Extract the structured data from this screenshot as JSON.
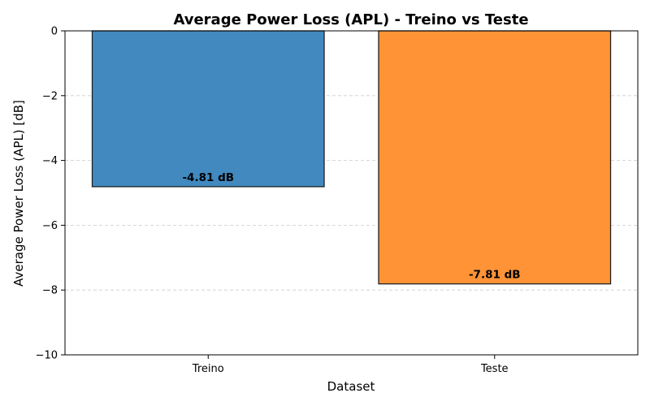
{
  "chart_data": {
    "type": "bar",
    "title": "Average Power Loss (APL) - Treino vs Teste",
    "xlabel": "Dataset",
    "ylabel": "Average Power Loss (APL) [dB]",
    "categories": [
      "Treino",
      "Teste"
    ],
    "values": [
      -4.81,
      -7.81
    ],
    "data_labels": [
      "-4.81 dB",
      "-7.81 dB"
    ],
    "colors": [
      "#4189bf",
      "#ff9336"
    ],
    "edge_color": "#222222",
    "ylim": [
      -10,
      0
    ],
    "yticks": [
      0,
      -2,
      -4,
      -6,
      -8,
      -10
    ],
    "ytick_labels": [
      "0",
      "−2",
      "−4",
      "−6",
      "−8",
      "−10"
    ],
    "grid": "y-dashed",
    "legend": "none"
  }
}
